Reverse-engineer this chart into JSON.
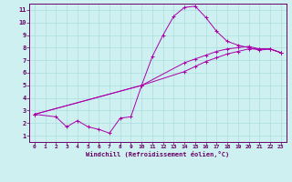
{
  "xlabel": "Windchill (Refroidissement éolien,°C)",
  "bg_color": "#cff0f0",
  "line_color": "#aa00aa",
  "grid_color": "#aadddd",
  "axis_color": "#660066",
  "xlim": [
    -0.5,
    23.5
  ],
  "ylim": [
    0.5,
    11.5
  ],
  "xticks": [
    0,
    1,
    2,
    3,
    4,
    5,
    6,
    7,
    8,
    9,
    10,
    11,
    12,
    13,
    14,
    15,
    16,
    17,
    18,
    19,
    20,
    21,
    22,
    23
  ],
  "yticks": [
    1,
    2,
    3,
    4,
    5,
    6,
    7,
    8,
    9,
    10,
    11
  ],
  "series": [
    {
      "x": [
        0,
        2,
        3,
        4,
        5,
        6,
        7,
        8,
        9,
        10,
        11,
        12,
        13,
        14,
        15,
        16,
        17,
        18,
        19,
        20,
        21,
        22,
        23
      ],
      "y": [
        2.7,
        2.5,
        1.7,
        2.2,
        1.7,
        1.5,
        1.2,
        2.4,
        2.5,
        5.0,
        7.3,
        9.0,
        10.5,
        11.2,
        11.3,
        10.4,
        9.3,
        8.5,
        8.2,
        8.0,
        7.8,
        7.9,
        7.6
      ]
    },
    {
      "x": [
        0,
        10,
        14,
        15,
        16,
        17,
        18,
        19,
        20,
        21,
        22,
        23
      ],
      "y": [
        2.7,
        5.0,
        6.8,
        7.1,
        7.4,
        7.7,
        7.9,
        8.0,
        8.1,
        7.9,
        7.9,
        7.6
      ]
    },
    {
      "x": [
        0,
        10,
        14,
        15,
        16,
        17,
        18,
        19,
        20,
        21,
        22,
        23
      ],
      "y": [
        2.7,
        5.0,
        6.1,
        6.5,
        6.9,
        7.2,
        7.5,
        7.7,
        7.9,
        7.9,
        7.9,
        7.6
      ]
    }
  ]
}
